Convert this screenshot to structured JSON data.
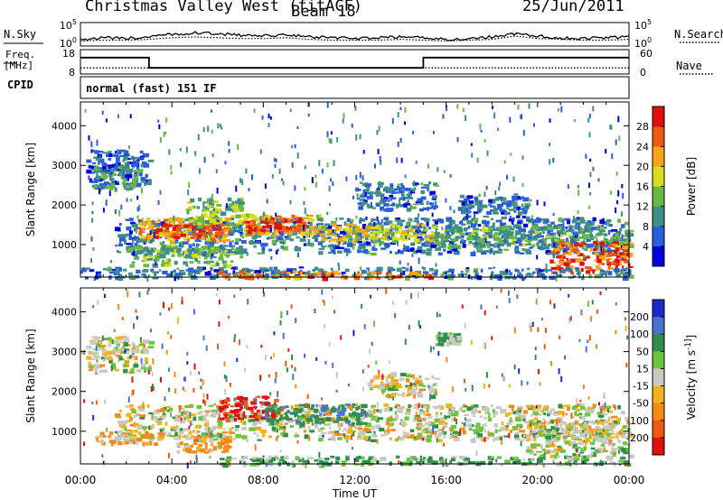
{
  "header": {
    "station": "Christmas Valley West (fitACF)",
    "beam": "Beam 18",
    "date": "25/Jun/2011"
  },
  "side_labels": {
    "nsky": "N.Sky",
    "nsearch": "N.Search",
    "freq": "Freq.",
    "freq_unit": "[MHz]",
    "nave": "Nave",
    "cpid": "CPID"
  },
  "cpid_text": "normal (fast) 151 IF",
  "chart_data": [
    {
      "type": "line",
      "name": "noise",
      "left_ticks": [
        "10^5",
        "10^0"
      ],
      "right_ticks": [
        "10^5",
        "10^0"
      ],
      "series": [
        {
          "name": "N.Sky",
          "style": "solid",
          "level": [
            2.2,
            2.4,
            2.3,
            2.5,
            2.8,
            3.0,
            2.9,
            2.7,
            2.6,
            2.8,
            2.5,
            2.4,
            2.3,
            2.4,
            2.5,
            2.4,
            2.2,
            2.3,
            2.5,
            2.9,
            2.6,
            2.4,
            2.3,
            2.4,
            2.5
          ]
        },
        {
          "name": "N.Search",
          "style": "dotted",
          "level": [
            2.0,
            2.1,
            2.1,
            2.2,
            2.4,
            2.5,
            2.4,
            2.3,
            2.3,
            2.4,
            2.2,
            2.1,
            2.1,
            2.1,
            2.2,
            2.1,
            2.0,
            2.1,
            2.2,
            2.6,
            2.3,
            2.2,
            2.1,
            2.1,
            2.2
          ]
        }
      ]
    },
    {
      "type": "line",
      "name": "frequency",
      "left_ticks": [
        "18",
        "8"
      ],
      "right_ticks": [
        "60",
        "0"
      ],
      "series": [
        {
          "name": "Freq.",
          "style": "solid",
          "x_hours": [
            0,
            3.0,
            3.0,
            15.0,
            15.0,
            24
          ],
          "values_mhz": [
            16,
            16,
            10,
            10,
            16,
            16
          ]
        },
        {
          "name": "Nave",
          "style": "dotted",
          "x_hours": [
            0,
            24
          ],
          "values": [
            12,
            12
          ]
        }
      ]
    },
    {
      "type": "heatmap",
      "name": "power",
      "x_range_hours": [
        0,
        24
      ],
      "y_range_km": [
        180,
        4600
      ],
      "yticks": [
        "1000",
        "2000",
        "3000",
        "4000"
      ],
      "ylabel": "Slant Range [km]",
      "colorbar_label": "Power [dB]",
      "colorbar_ticks": [
        "4",
        "8",
        "12",
        "16",
        "20",
        "24",
        "28"
      ],
      "colorbar_range": [
        0,
        32
      ],
      "colors": [
        "#0000dd",
        "#2a5fd8",
        "#3f8f84",
        "#6ab844",
        "#d8dc1a",
        "#f7a418",
        "#ee5a10",
        "#e01010"
      ],
      "regions": [
        {
          "t0": 0.2,
          "t1": 3.0,
          "r0": 2500,
          "r1": 3400,
          "v": 6
        },
        {
          "t0": 0.5,
          "t1": 2.5,
          "r0": 2400,
          "r1": 3000,
          "v": 11
        },
        {
          "t0": 1.5,
          "t1": 24,
          "r0": 800,
          "r1": 1700,
          "v": 8
        },
        {
          "t0": 2.5,
          "t1": 6.5,
          "r0": 1100,
          "r1": 1700,
          "v": 22
        },
        {
          "t0": 3.0,
          "t1": 6.2,
          "r0": 1200,
          "r1": 1550,
          "v": 29
        },
        {
          "t0": 4.5,
          "t1": 7.0,
          "r0": 1500,
          "r1": 2200,
          "v": 14
        },
        {
          "t0": 6.8,
          "t1": 10.5,
          "r0": 1250,
          "r1": 1800,
          "v": 20
        },
        {
          "t0": 7.2,
          "t1": 9.8,
          "r0": 1350,
          "r1": 1700,
          "v": 29
        },
        {
          "t0": 10.5,
          "t1": 15.5,
          "r0": 1100,
          "r1": 1550,
          "v": 18
        },
        {
          "t0": 15.5,
          "t1": 24,
          "r0": 1000,
          "r1": 1500,
          "v": 12
        },
        {
          "t0": 20.5,
          "t1": 24,
          "r0": 300,
          "r1": 1100,
          "v": 26
        },
        {
          "t0": 0,
          "t1": 24,
          "r0": 180,
          "r1": 450,
          "v": 8
        },
        {
          "t0": 6.0,
          "t1": 15.5,
          "r0": 180,
          "r1": 350,
          "v": 24
        },
        {
          "t0": 12.0,
          "t1": 15.5,
          "r0": 1900,
          "r1": 2600,
          "v": 8
        },
        {
          "t0": 16.5,
          "t1": 19.5,
          "r0": 1700,
          "r1": 2300,
          "v": 8
        },
        {
          "t0": 2.0,
          "t1": 7.0,
          "r0": 500,
          "r1": 1000,
          "v": 13
        }
      ]
    },
    {
      "type": "heatmap",
      "name": "velocity",
      "x_range_hours": [
        0,
        24
      ],
      "y_range_km": [
        180,
        4600
      ],
      "yticks": [
        "1000",
        "2000",
        "3000",
        "4000"
      ],
      "ylabel": "Slant Range [km]",
      "xlabel": "Time UT",
      "xticks": [
        "00:00",
        "04:00",
        "08:00",
        "12:00",
        "16:00",
        "20:00",
        "00:00"
      ],
      "colorbar_label": "Velocity [m s^-1]",
      "colorbar_ticks": [
        "200",
        "100",
        "50",
        "15",
        "-15",
        "-50",
        "-100",
        "-200"
      ],
      "colors": [
        "#1a2ac8",
        "#4a73d0",
        "#2f8f4a",
        "#6cc63c",
        "#c8c8c4",
        "#f2b41a",
        "#f58a18",
        "#ef5a12",
        "#e01010"
      ],
      "regions": [
        {
          "t0": 0.2,
          "t1": 3.0,
          "r0": 2500,
          "r1": 3400,
          "v": 0
        },
        {
          "t0": 1.5,
          "t1": 24,
          "r0": 800,
          "r1": 1700,
          "v": 0
        },
        {
          "t0": 6.0,
          "t1": 8.5,
          "r0": 1300,
          "r1": 1900,
          "v": -160
        },
        {
          "t0": 8.0,
          "t1": 12.5,
          "r0": 1200,
          "r1": 1700,
          "v": 60
        },
        {
          "t0": 4.0,
          "t1": 6.5,
          "r0": 500,
          "r1": 900,
          "v": -40
        },
        {
          "t0": 0.5,
          "t1": 3.5,
          "r0": 700,
          "r1": 1000,
          "v": -30
        },
        {
          "t0": 6.0,
          "t1": 24,
          "r0": 180,
          "r1": 400,
          "v": 30
        },
        {
          "t0": 19.5,
          "t1": 24,
          "r0": 400,
          "r1": 1300,
          "v": 0
        },
        {
          "t0": 12.5,
          "t1": 15.5,
          "r0": 1900,
          "r1": 2500,
          "v": 0
        },
        {
          "t0": 15.5,
          "t1": 16.5,
          "r0": 3200,
          "r1": 3500,
          "v": 25
        }
      ]
    }
  ]
}
